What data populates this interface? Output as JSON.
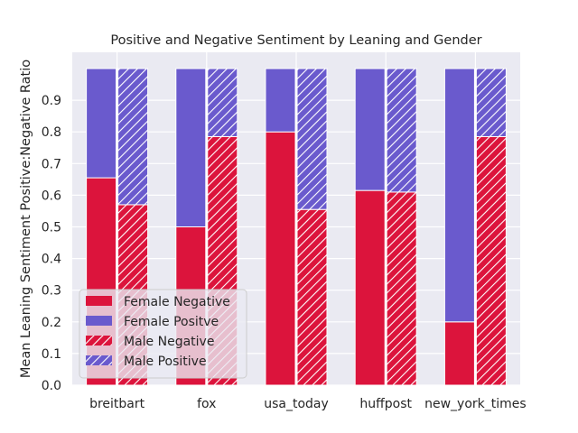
{
  "chart_data": {
    "type": "bar",
    "stacked": true,
    "title": "Positive and Negative Sentiment by Leaning and Gender",
    "xlabel": "",
    "ylabel": "Mean Leaning Sentiment Positive:Negative Ratio",
    "ylim": [
      0,
      1.0
    ],
    "yticks": [
      0.0,
      0.1,
      0.2,
      0.3,
      0.4,
      0.5,
      0.6,
      0.7,
      0.8,
      0.9
    ],
    "categories": [
      "breitbart",
      "fox",
      "usa_today",
      "huffpost",
      "new_york_times"
    ],
    "grid": true,
    "legend_position": "bottom-left",
    "series": [
      {
        "name": "Female Negative",
        "group": "female",
        "stack": "bottom",
        "color": "#dc143c",
        "hatch": false,
        "values": [
          0.655,
          0.5,
          0.8,
          0.615,
          0.2
        ]
      },
      {
        "name": "Female Positve",
        "group": "female",
        "stack": "top",
        "color": "#6a5acd",
        "hatch": false,
        "values": [
          0.345,
          0.5,
          0.2,
          0.385,
          0.8
        ]
      },
      {
        "name": "Male Negative",
        "group": "male",
        "stack": "bottom",
        "color": "#dc143c",
        "hatch": true,
        "values": [
          0.57,
          0.785,
          0.555,
          0.61,
          0.785
        ]
      },
      {
        "name": "Male Positive",
        "group": "male",
        "stack": "top",
        "color": "#6a5acd",
        "hatch": true,
        "values": [
          0.43,
          0.215,
          0.445,
          0.39,
          0.215
        ]
      }
    ]
  }
}
